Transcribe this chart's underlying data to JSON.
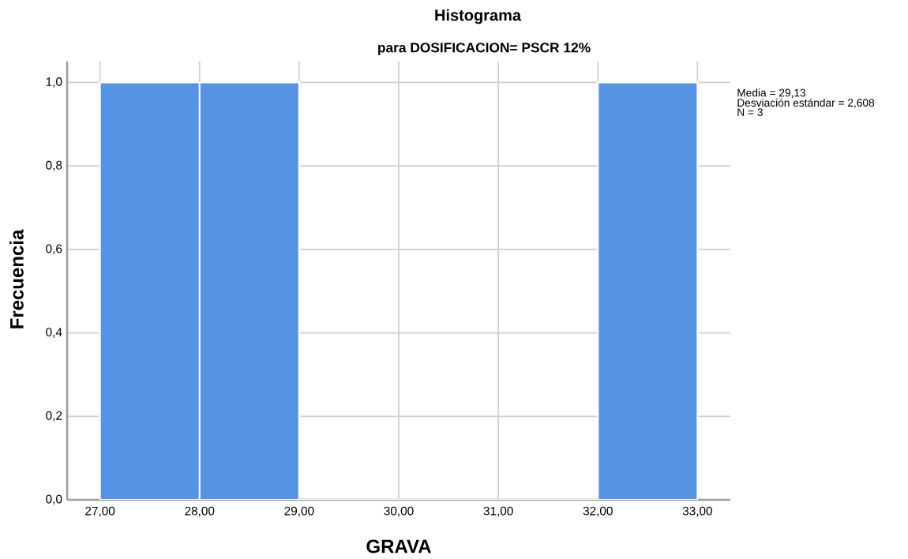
{
  "chart_data": {
    "type": "histogram",
    "title": "Histograma",
    "subtitle": "para DOSIFICACION= PSCR 12%",
    "xlabel": "GRAVA",
    "ylabel": "Frecuencia",
    "bins": [
      27,
      28,
      29,
      30,
      31,
      32,
      33
    ],
    "values": [
      1,
      1,
      0,
      0,
      0,
      1
    ],
    "color": "#5594e4",
    "xlim": [
      26.67,
      33.33
    ],
    "ylim": [
      0,
      1.05
    ],
    "xticks": [
      {
        "value": 27,
        "label": "27,00"
      },
      {
        "value": 28,
        "label": "28,00"
      },
      {
        "value": 29,
        "label": "29,00"
      },
      {
        "value": 30,
        "label": "30,00"
      },
      {
        "value": 31,
        "label": "31,00"
      },
      {
        "value": 32,
        "label": "32,00"
      },
      {
        "value": 33,
        "label": "33,00"
      }
    ],
    "yticks": [
      {
        "value": 0,
        "label": "0,0"
      },
      {
        "value": 0.2,
        "label": "0,2"
      },
      {
        "value": 0.4,
        "label": "0,4"
      },
      {
        "value": 0.6,
        "label": "0,6"
      },
      {
        "value": 0.8,
        "label": "0,8"
      },
      {
        "value": 1.0,
        "label": "1,0"
      }
    ],
    "grid": true,
    "annotations": [
      "Media = 29,13",
      "Desviación estándar = 2,608",
      "N = 3"
    ]
  }
}
